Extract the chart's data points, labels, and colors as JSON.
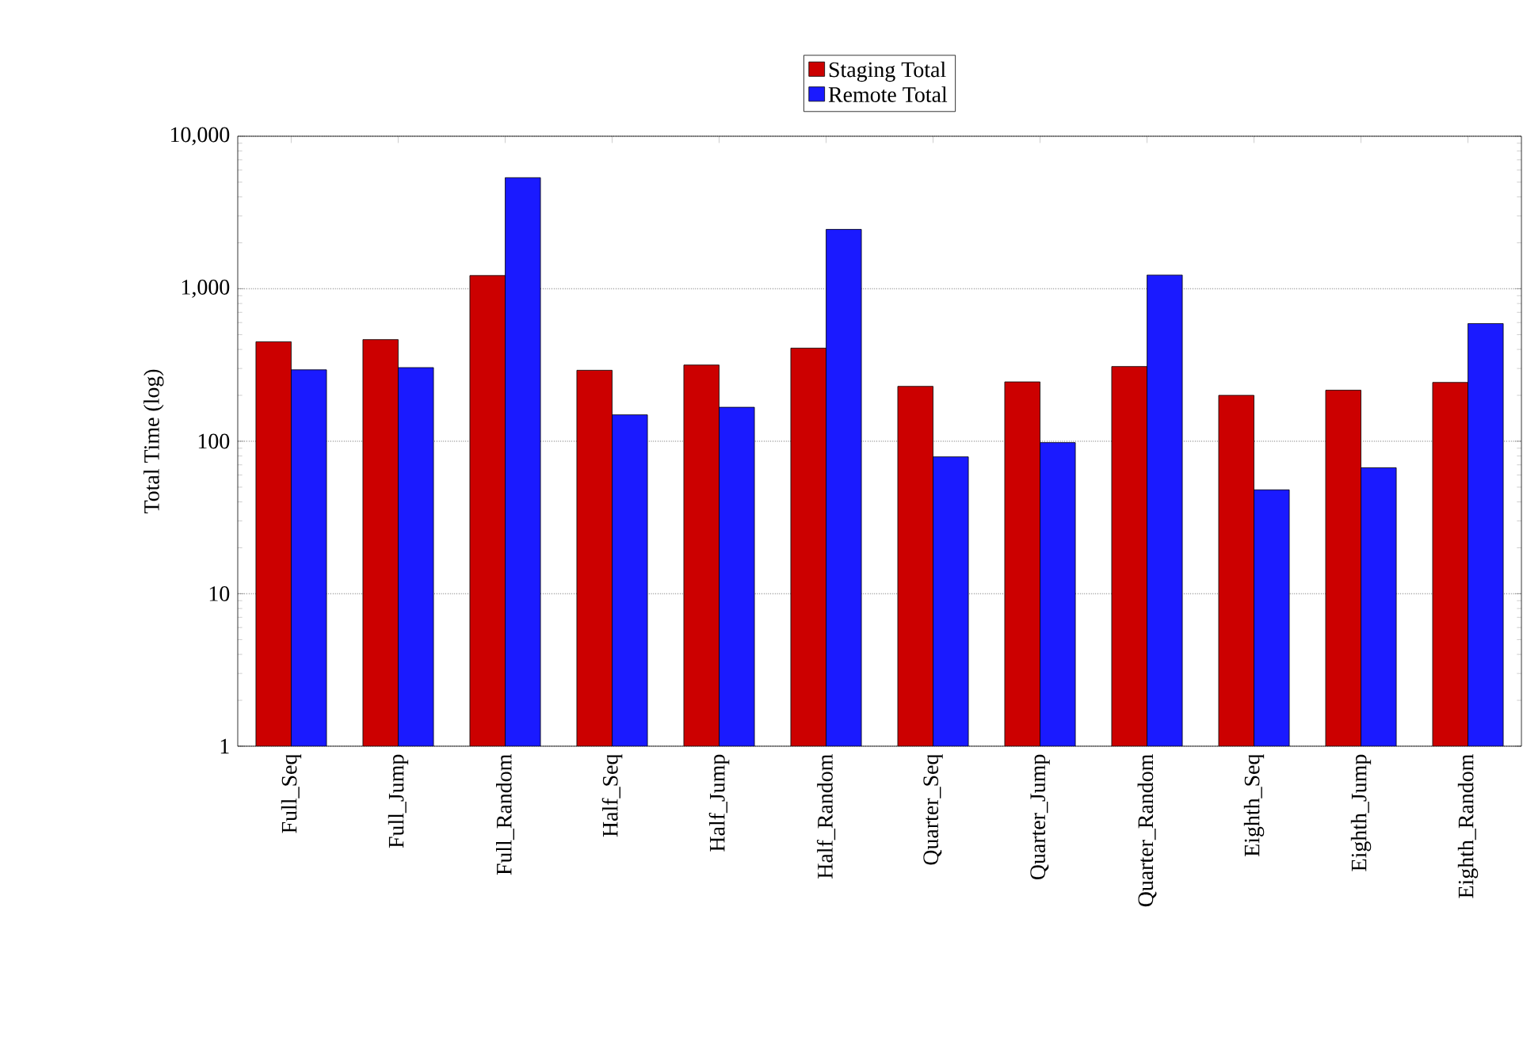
{
  "chart_data": {
    "type": "bar",
    "ylabel": "Total Time (log)",
    "log": "y",
    "grid": "y",
    "legend": "top",
    "categories": [
      "Full_Seq",
      "Full_Jump",
      "Full_Random",
      "Half_Seq",
      "Half_Jump",
      "Half_Random",
      "Quarter_Seq",
      "Quarter_Jump",
      "Quarter_Random",
      "Eighth_Seq",
      "Eighth_Jump",
      "Eighth_Random"
    ],
    "ylim": [
      1,
      10000
    ],
    "yticks": [
      1,
      10,
      100,
      {
        "value": 1000,
        "label": "1,000"
      },
      {
        "value": 10000,
        "label": "10,000"
      }
    ],
    "series": [
      {
        "name": "Staging Total",
        "color": "#cc0000",
        "values": [
          449,
          464,
          1220,
          292,
          316,
          408,
          229,
          245,
          309,
          200,
          216,
          243
        ]
      },
      {
        "name": "Remote Total",
        "color": "#1a1aff",
        "values": [
          294,
          304,
          5350,
          149,
          167,
          2450,
          79,
          98,
          1230,
          48,
          67,
          591
        ]
      }
    ]
  }
}
